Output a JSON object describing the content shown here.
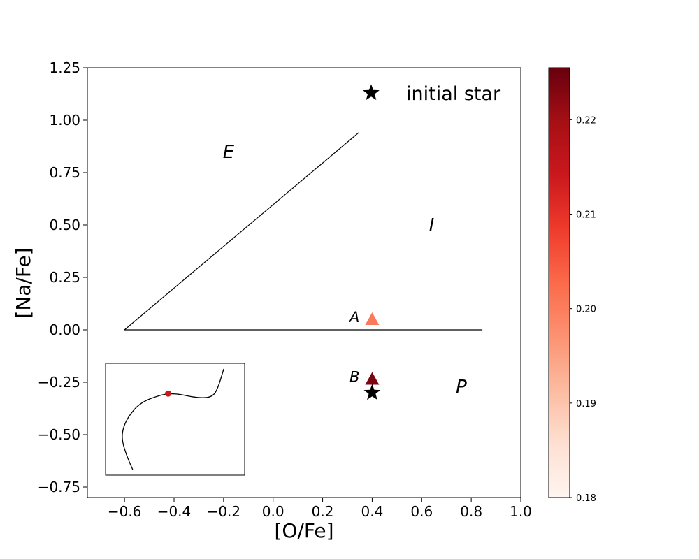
{
  "chart_data": {
    "type": "scatter",
    "xlabel": "[O/Fe]",
    "ylabel": "[Na/Fe]",
    "xlim": [
      -0.75,
      1.0
    ],
    "ylim": [
      -0.8,
      1.25
    ],
    "x_ticks": [
      -0.6,
      -0.4,
      -0.2,
      0.0,
      0.2,
      0.4,
      0.6,
      0.8,
      1.0
    ],
    "x_tick_labels": [
      "−0.6",
      "−0.4",
      "−0.2",
      "0.0",
      "0.2",
      "0.4",
      "0.6",
      "0.8",
      "1.0"
    ],
    "y_ticks": [
      1.25,
      1.0,
      0.75,
      0.5,
      0.25,
      0.0,
      -0.25,
      -0.5,
      -0.75
    ],
    "y_tick_labels": [
      "1.25",
      "1.00",
      "0.75",
      "0.50",
      "0.25",
      "0.00",
      "−0.25",
      "−0.50",
      "−0.75"
    ],
    "grid": false,
    "region_boundaries": [
      {
        "points": [
          [
            -0.6,
            0.0
          ],
          [
            0.345,
            0.94
          ]
        ]
      },
      {
        "points": [
          [
            -0.6,
            0.0
          ],
          [
            0.845,
            0.0
          ]
        ]
      }
    ],
    "region_labels": [
      {
        "text": "E",
        "x": -0.18,
        "y": 0.82
      },
      {
        "text": "I",
        "x": 0.64,
        "y": 0.47
      },
      {
        "text": "P",
        "x": 0.76,
        "y": -0.3
      }
    ],
    "points": [
      {
        "label": "A",
        "x": 0.4,
        "y": 0.05,
        "marker": "triangle",
        "value": 0.2005
      },
      {
        "label": "B",
        "x": 0.4,
        "y": -0.235,
        "marker": "triangle",
        "value": 0.2235
      },
      {
        "label": "",
        "x": 0.4,
        "y": -0.3,
        "marker": "star",
        "color": "#000000"
      }
    ],
    "legend": {
      "entries": [
        {
          "marker": "star",
          "label": "initial star"
        }
      ],
      "placement": "top-right"
    },
    "colorbar": {
      "colormap": "Reds",
      "range": [
        0.18,
        0.2255
      ],
      "ticks": [
        0.18,
        0.19,
        0.2,
        0.21,
        0.22
      ],
      "tick_labels": [
        "0.18",
        "0.19",
        "0.20",
        "0.21",
        "0.22"
      ]
    },
    "inset": {
      "placement": "lower-left",
      "curve": [
        [
          0.195,
          0.05
        ],
        [
          0.15,
          0.18
        ],
        [
          0.12,
          0.3
        ],
        [
          0.12,
          0.4
        ],
        [
          0.16,
          0.52
        ],
        [
          0.25,
          0.65
        ],
        [
          0.4,
          0.72
        ],
        [
          0.48,
          0.73
        ],
        [
          0.55,
          0.72
        ],
        [
          0.62,
          0.7
        ],
        [
          0.7,
          0.69
        ],
        [
          0.76,
          0.7
        ],
        [
          0.8,
          0.75
        ],
        [
          0.85,
          0.95
        ]
      ],
      "marker": {
        "x": 0.45,
        "y": 0.73,
        "color": "#cc1a1a"
      }
    }
  }
}
